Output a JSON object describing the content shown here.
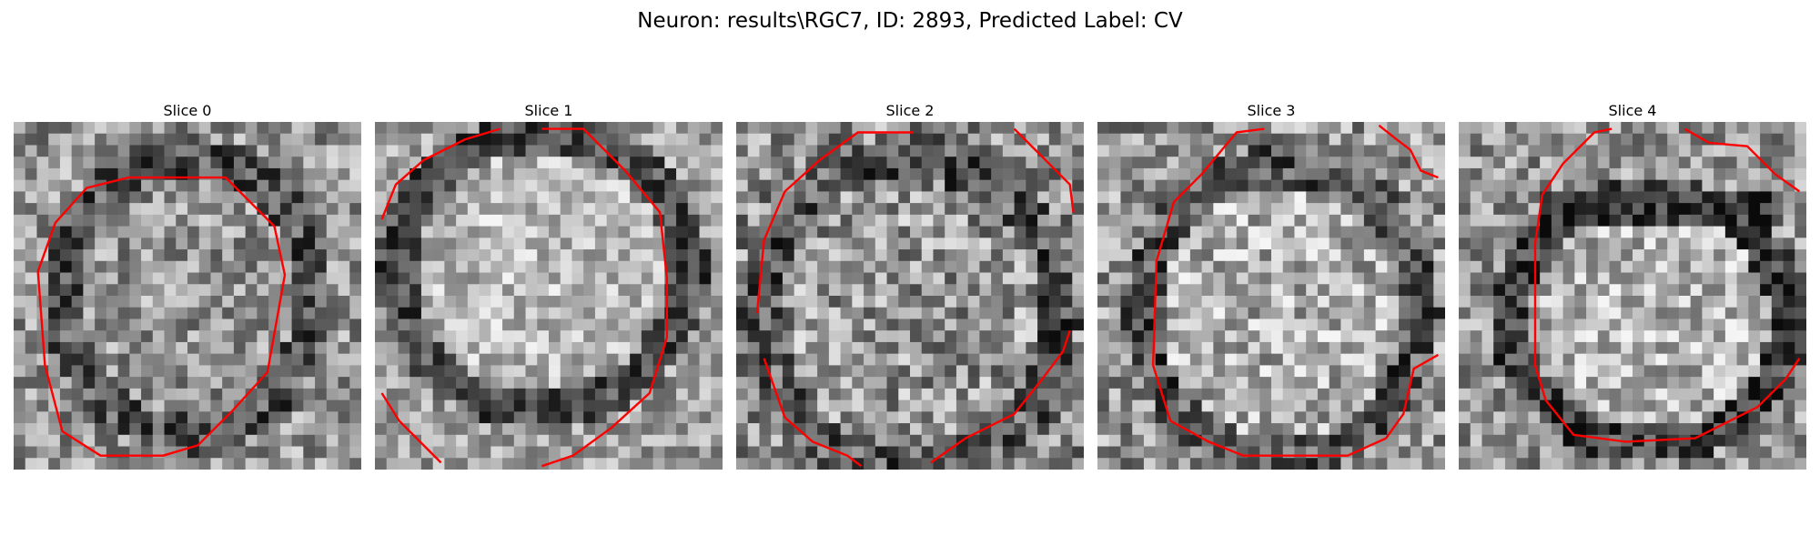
{
  "figure": {
    "title": "Neuron: results\\RGC7, ID: 2893, Predicted Label: CV",
    "contour_color": "#ff0000"
  },
  "slices": [
    {
      "label": "Slice 0"
    },
    {
      "label": "Slice 1"
    },
    {
      "label": "Slice 2"
    },
    {
      "label": "Slice 3"
    },
    {
      "label": "Slice 4"
    }
  ]
}
